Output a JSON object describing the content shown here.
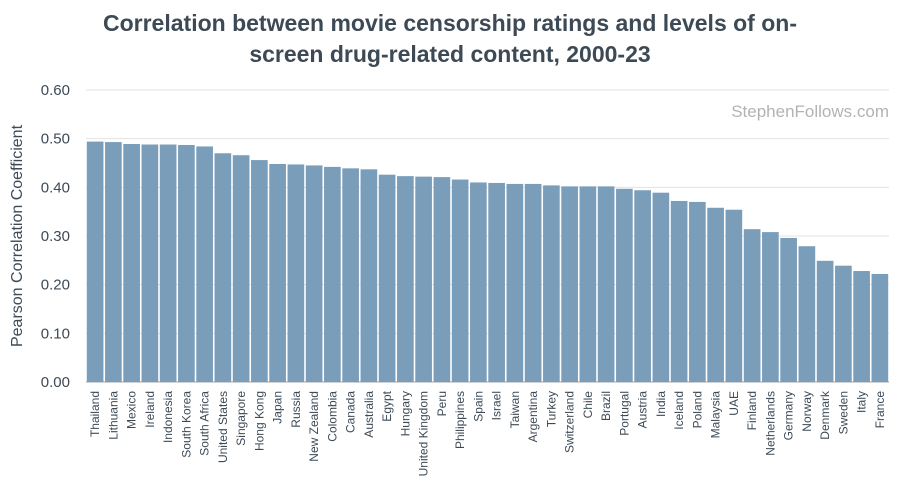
{
  "chart_data": {
    "type": "bar",
    "title_line1": "Correlation between movie censorship ratings and levels of on-",
    "title_line2": "screen drug-related content, 2000-23",
    "xlabel": "",
    "ylabel": "Pearson Correlation Coefficient",
    "ylim": [
      0,
      0.6
    ],
    "yticks": [
      "0.00",
      "0.10",
      "0.20",
      "0.30",
      "0.40",
      "0.50",
      "0.60"
    ],
    "grid": true,
    "watermark": "StephenFollows.com",
    "bar_color": "#7a9dba",
    "categories": [
      "Thailand",
      "Lithuania",
      "Mexico",
      "Ireland",
      "Indonesia",
      "South Korea",
      "South Africa",
      "United States",
      "Singapore",
      "Hong Kong",
      "Japan",
      "Russia",
      "New Zealand",
      "Colombia",
      "Canada",
      "Australia",
      "Egypt",
      "Hungary",
      "United Kingdom",
      "Peru",
      "Philippines",
      "Spain",
      "Israel",
      "Taiwan",
      "Argentina",
      "Turkey",
      "Switzerland",
      "Chile",
      "Brazil",
      "Portugal",
      "Austria",
      "India",
      "Iceland",
      "Poland",
      "Malaysia",
      "UAE",
      "Finland",
      "Netherlands",
      "Germany",
      "Norway",
      "Denmark",
      "Sweden",
      "Italy",
      "France"
    ],
    "values": [
      0.494,
      0.493,
      0.489,
      0.488,
      0.488,
      0.487,
      0.484,
      0.47,
      0.466,
      0.456,
      0.448,
      0.447,
      0.445,
      0.442,
      0.439,
      0.437,
      0.426,
      0.423,
      0.422,
      0.421,
      0.416,
      0.41,
      0.409,
      0.407,
      0.407,
      0.404,
      0.402,
      0.402,
      0.402,
      0.397,
      0.394,
      0.389,
      0.372,
      0.37,
      0.358,
      0.354,
      0.314,
      0.308,
      0.296,
      0.279,
      0.249,
      0.239,
      0.228,
      0.222
    ]
  }
}
